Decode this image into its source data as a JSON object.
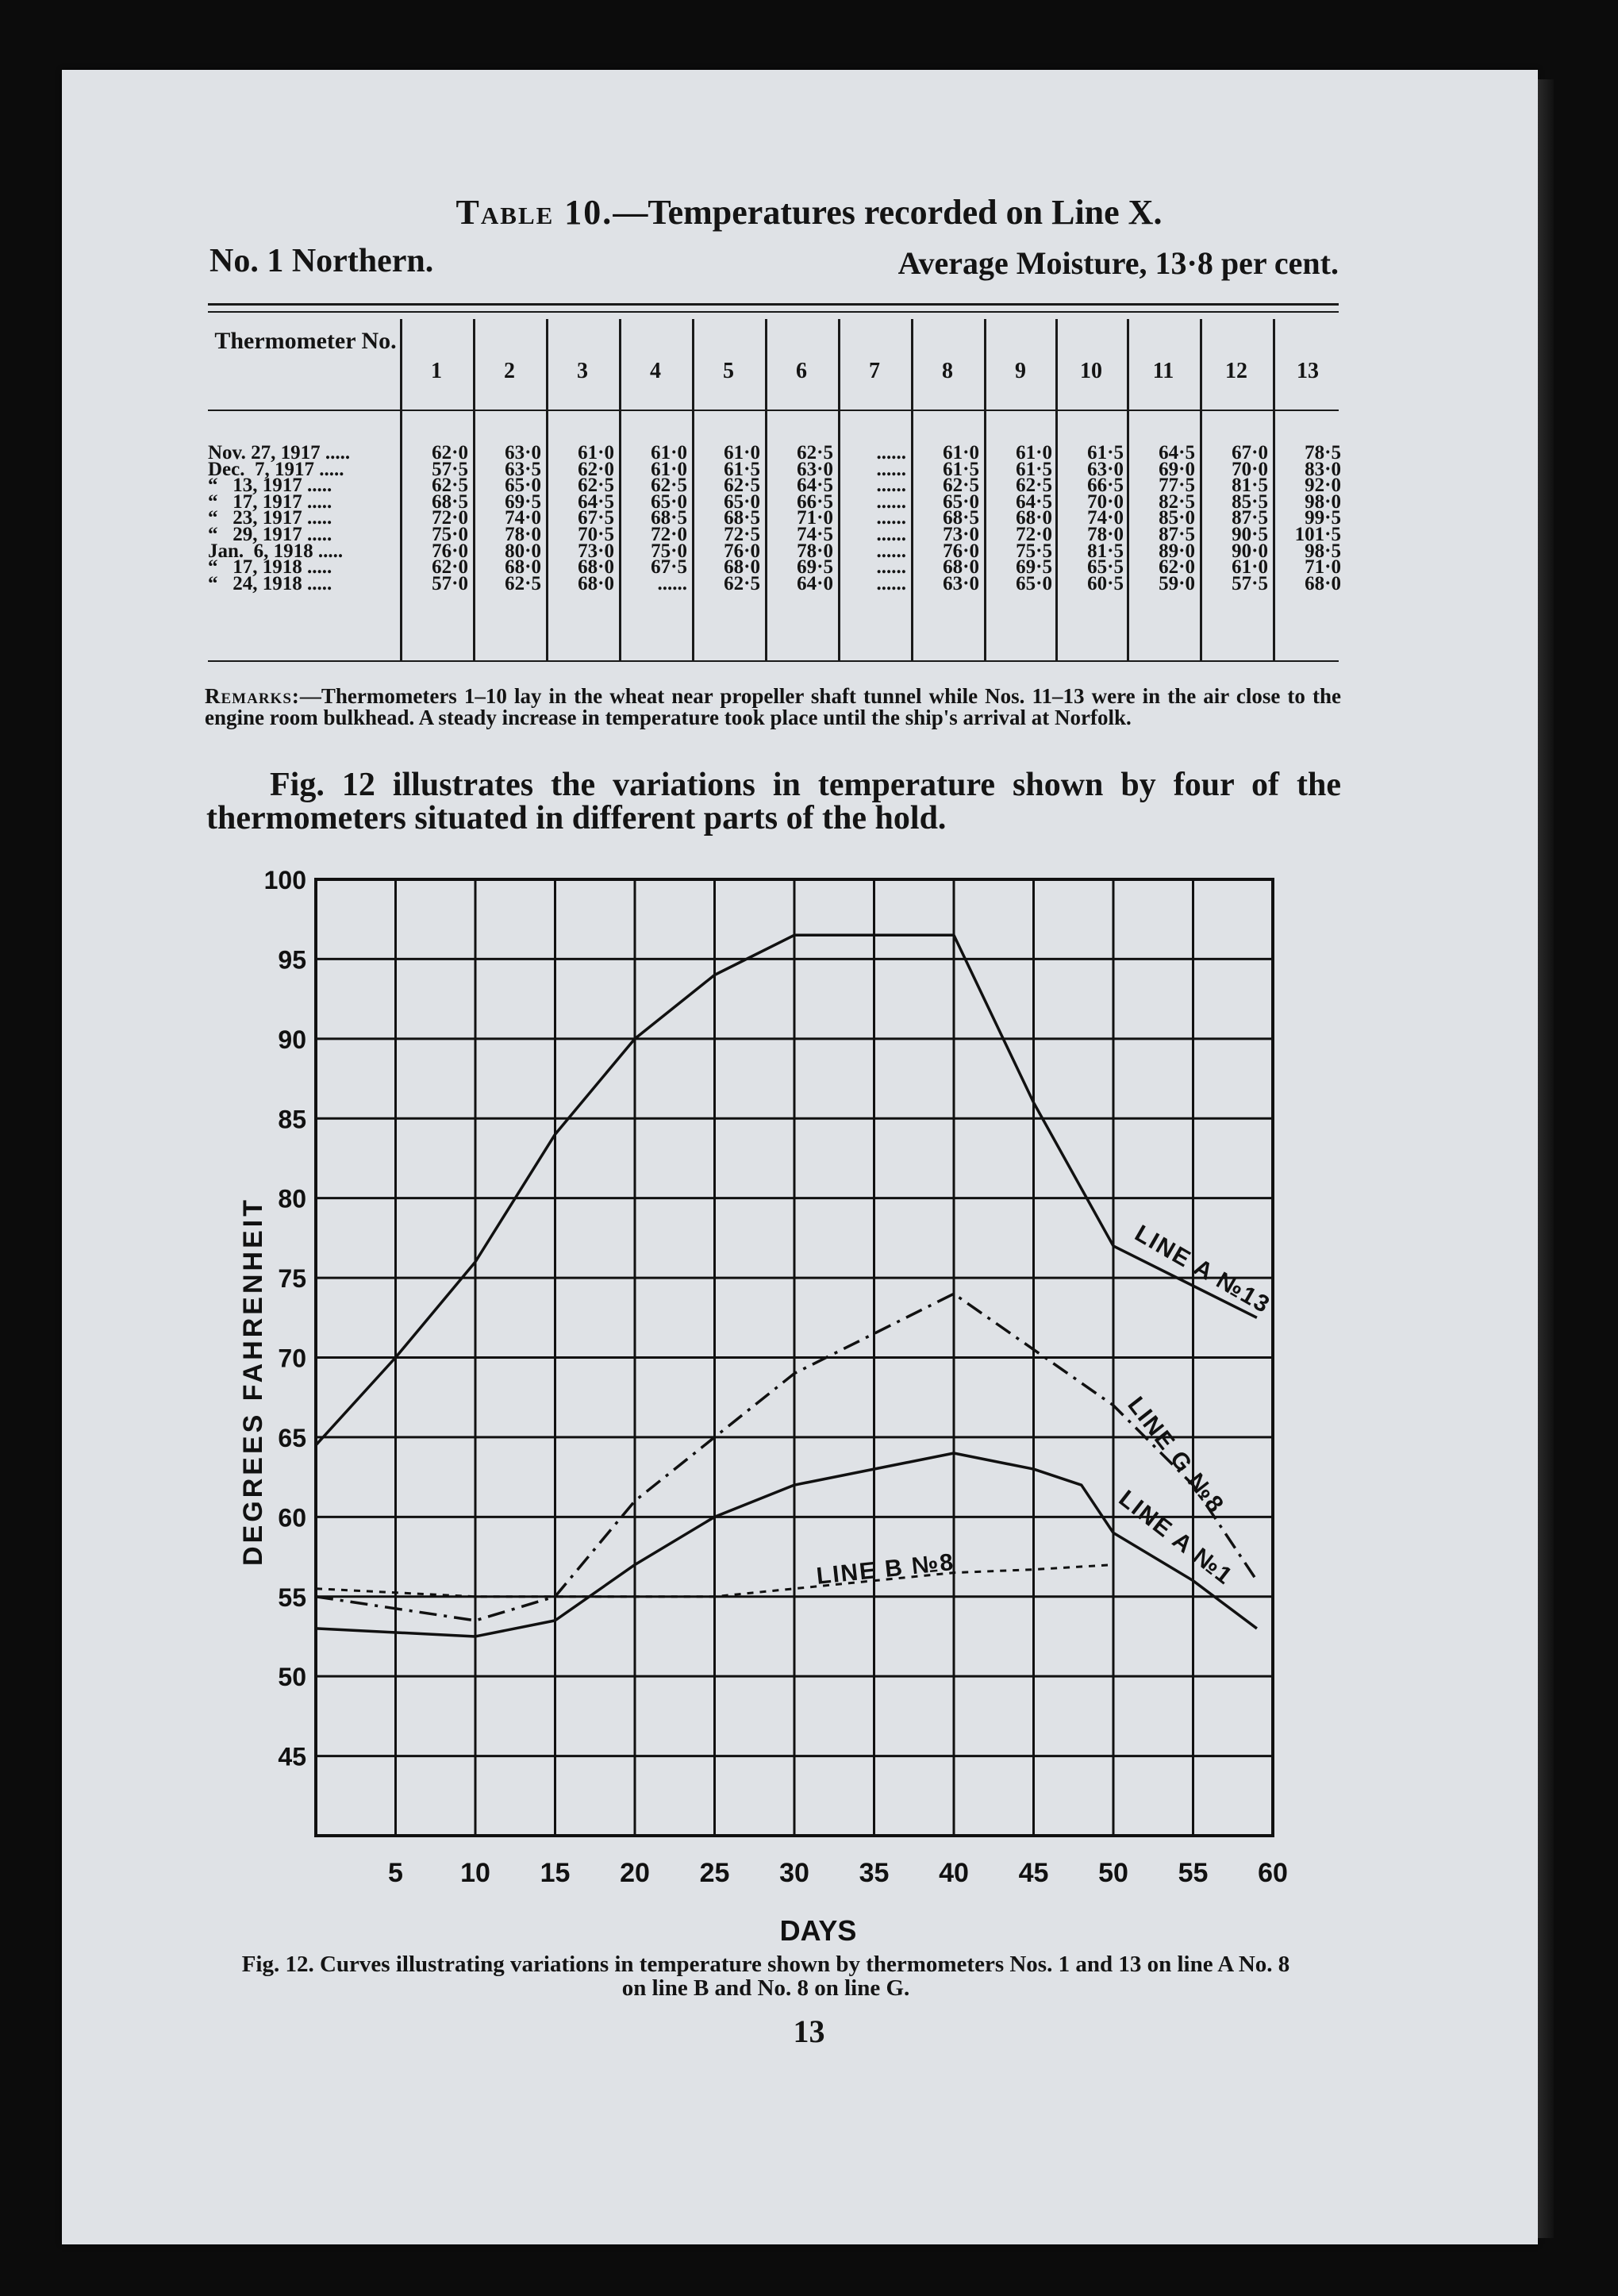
{
  "table": {
    "caption_label": "Table 10.",
    "caption_text": "—Temperatures recorded on Line X.",
    "grade": "No. 1 Northern.",
    "moisture": "Average Moisture, 13·8 per cent.",
    "header_first": "Thermometer No.",
    "columns": [
      "1",
      "2",
      "3",
      "4",
      "5",
      "6",
      "7",
      "8",
      "9",
      "10",
      "11",
      "12",
      "13"
    ],
    "rows": [
      {
        "date": "Nov. 27, 1917",
        "values": [
          "62·0",
          "63·0",
          "61·0",
          "61·0",
          "61·0",
          "62·5",
          "......",
          "61·0",
          "61·0",
          "61·5",
          "64·5",
          "67·0",
          "78·5"
        ]
      },
      {
        "date": "Dec.  7, 1917",
        "values": [
          "57·5",
          "63·5",
          "62·0",
          "61·0",
          "61·5",
          "63·0",
          "......",
          "61·5",
          "61·5",
          "63·0",
          "69·0",
          "70·0",
          "83·0"
        ]
      },
      {
        "date": "“   13, 1917",
        "values": [
          "62·5",
          "65·0",
          "62·5",
          "62·5",
          "62·5",
          "64·5",
          "......",
          "62·5",
          "62·5",
          "66·5",
          "77·5",
          "81·5",
          "92·0"
        ]
      },
      {
        "date": "“   17, 1917",
        "values": [
          "68·5",
          "69·5",
          "64·5",
          "65·0",
          "65·0",
          "66·5",
          "......",
          "65·0",
          "64·5",
          "70·0",
          "82·5",
          "85·5",
          "98·0"
        ]
      },
      {
        "date": "“   23, 1917",
        "values": [
          "72·0",
          "74·0",
          "67·5",
          "68·5",
          "68·5",
          "71·0",
          "......",
          "68·5",
          "68·0",
          "74·0",
          "85·0",
          "87·5",
          "99·5"
        ]
      },
      {
        "date": "“   29, 1917",
        "values": [
          "75·0",
          "78·0",
          "70·5",
          "72·0",
          "72·5",
          "74·5",
          "......",
          "73·0",
          "72·0",
          "78·0",
          "87·5",
          "90·5",
          "101·5"
        ]
      },
      {
        "date": "Jan.  6, 1918",
        "values": [
          "76·0",
          "80·0",
          "73·0",
          "75·0",
          "76·0",
          "78·0",
          "......",
          "76·0",
          "75·5",
          "81·5",
          "89·0",
          "90·0",
          "98·5"
        ]
      },
      {
        "date": "“   17, 1918",
        "values": [
          "62·0",
          "68·0",
          "68·0",
          "67·5",
          "68·0",
          "69·5",
          "......",
          "68·0",
          "69·5",
          "65·5",
          "62·0",
          "61·0",
          "71·0"
        ]
      },
      {
        "date": "“   24, 1918",
        "values": [
          "57·0",
          "62·5",
          "68·0",
          "......",
          "62·5",
          "64·0",
          "......",
          "63·0",
          "65·0",
          "60·5",
          "59·0",
          "57·5",
          "68·0"
        ]
      }
    ],
    "remarks_lead": "Remarks:",
    "remarks_text": "—Thermometers 1–10 lay in the wheat near propeller shaft tunnel while Nos. 11–13 were in the air close to the engine room bulkhead. A steady increase in temperature took place until the ship's arrival at Norfolk."
  },
  "paragraph": "Fig. 12 illustrates the variations in temperature shown by four of the thermometers situated in different parts of the hold.",
  "chart_data": {
    "type": "line",
    "xlabel": "DAYS",
    "ylabel": "DEGREES FAHRENHEIT",
    "xlim": [
      0,
      60
    ],
    "ylim": [
      40,
      100
    ],
    "grid": true,
    "x_ticks": [
      "5",
      "10",
      "15",
      "20",
      "25",
      "30",
      "35",
      "40",
      "45",
      "50",
      "55",
      "60"
    ],
    "y_ticks": [
      "100",
      "95",
      "90",
      "85",
      "80",
      "75",
      "70",
      "65",
      "60",
      "55",
      "50",
      "45"
    ],
    "series": [
      {
        "name": "LINE A №13",
        "style": "solid",
        "points": [
          [
            0,
            64.5
          ],
          [
            5,
            70
          ],
          [
            10,
            76
          ],
          [
            15,
            84
          ],
          [
            20,
            90
          ],
          [
            25,
            94
          ],
          [
            30,
            96.5
          ],
          [
            40,
            96.5
          ],
          [
            45,
            86
          ],
          [
            50,
            77
          ],
          [
            55,
            74.5
          ],
          [
            59,
            72.5
          ]
        ]
      },
      {
        "name": "LINE G №8",
        "style": "dashdot",
        "points": [
          [
            0,
            55
          ],
          [
            10,
            53.5
          ],
          [
            15,
            55
          ],
          [
            20,
            61
          ],
          [
            25,
            65
          ],
          [
            30,
            69
          ],
          [
            40,
            74
          ],
          [
            45,
            70.5
          ],
          [
            50,
            67
          ],
          [
            55,
            62
          ],
          [
            59,
            56
          ]
        ]
      },
      {
        "name": "LINE A №1",
        "style": "solid",
        "points": [
          [
            0,
            53
          ],
          [
            10,
            52.5
          ],
          [
            15,
            53.5
          ],
          [
            20,
            57
          ],
          [
            25,
            60
          ],
          [
            30,
            62
          ],
          [
            40,
            64
          ],
          [
            45,
            63
          ],
          [
            48,
            62
          ],
          [
            50,
            59
          ],
          [
            55,
            56
          ],
          [
            59,
            53
          ]
        ]
      },
      {
        "name": "LINE B №8",
        "style": "dotted",
        "points": [
          [
            0,
            55.5
          ],
          [
            10,
            55
          ],
          [
            15,
            55
          ],
          [
            20,
            55
          ],
          [
            25,
            55
          ],
          [
            30,
            55.5
          ],
          [
            35,
            56
          ],
          [
            40,
            56.5
          ],
          [
            45,
            56.7
          ],
          [
            50,
            57
          ]
        ]
      }
    ]
  },
  "figure_caption": "Fig. 12. Curves illustrating variations in temperature shown by thermometers Nos. 1 and 13 on line A No. 8 on line B and No. 8 on line G.",
  "page_number": "13"
}
